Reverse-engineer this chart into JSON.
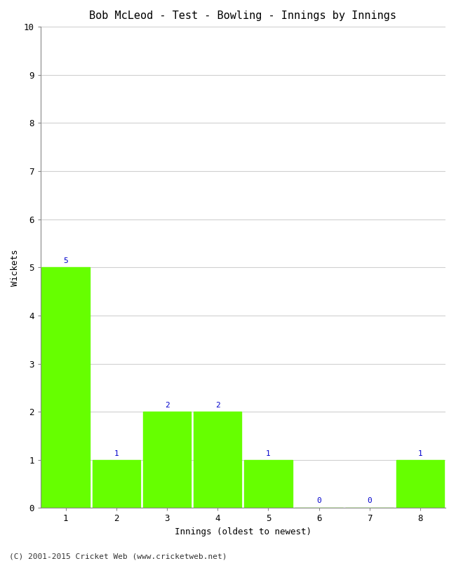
{
  "title": "Bob McLeod - Test - Bowling - Innings by Innings",
  "xlabel": "Innings (oldest to newest)",
  "ylabel": "Wickets",
  "categories": [
    "1",
    "2",
    "3",
    "4",
    "5",
    "6",
    "7",
    "8"
  ],
  "values": [
    5,
    1,
    2,
    2,
    1,
    0,
    0,
    1
  ],
  "bar_color": "#66ff00",
  "bar_edge_color": "#66ff00",
  "ylim": [
    0,
    10
  ],
  "yticks": [
    0,
    1,
    2,
    3,
    4,
    5,
    6,
    7,
    8,
    9,
    10
  ],
  "label_color": "#0000cc",
  "label_fontsize": 8,
  "title_fontsize": 11,
  "axis_label_fontsize": 9,
  "tick_fontsize": 9,
  "footer": "(C) 2001-2015 Cricket Web (www.cricketweb.net)",
  "footer_fontsize": 8,
  "background_color": "#ffffff",
  "grid_color": "#d0d0d0",
  "bar_width": 0.95
}
